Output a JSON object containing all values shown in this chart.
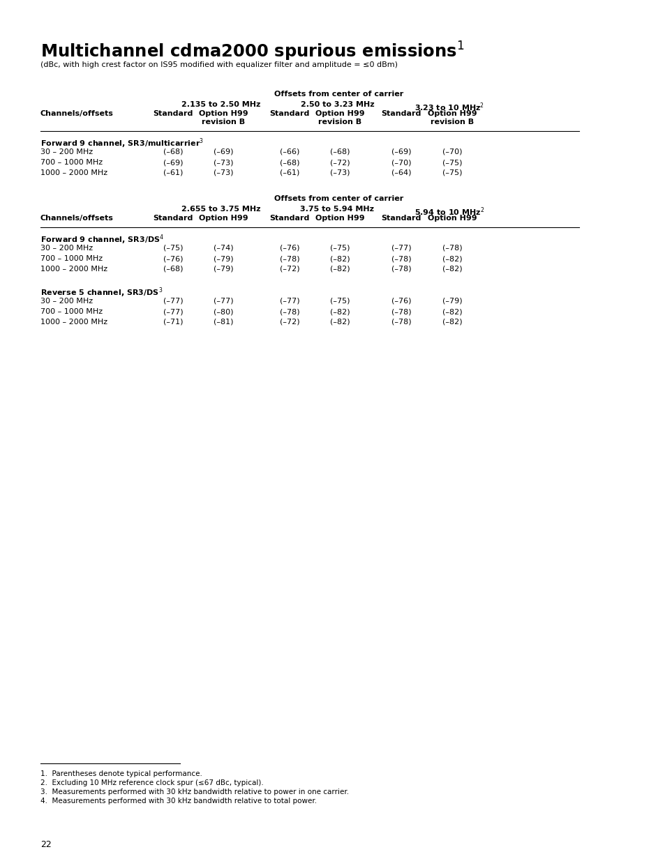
{
  "title": "Multichannel cdma2000 spurious emissions",
  "title_superscript": "1",
  "subtitle": "(dBc, with high crest factor on IS95 modified with equalizer filter and amplitude = ≤0 dBm)",
  "bg_color": "#ffffff",
  "table1_header_center": "Offsets from center of carrier",
  "table1_col_group1": "2.135 to 2.50 MHz",
  "table1_col_group2": "2.50 to 3.23 MHz",
  "table1_col_group3": "3.23 to 10 MHz",
  "table1_col_group3_super": "2",
  "table1_col_headers": [
    "Channels/offsets",
    "Standard",
    "Option H99\nrevision B",
    "Standard",
    "Option H99\nrevision B",
    "Standard",
    "Option H99\nrevision B"
  ],
  "table1_section1_label": "Forward 9 channel, SR3/multicarrier",
  "table1_section1_super": "3",
  "table1_rows1": [
    [
      "30 – 200 MHz",
      "(–68)",
      "(–69)",
      "(–66)",
      "(–68)",
      "(–69)",
      "(–70)"
    ],
    [
      "700 – 1000 MHz",
      "(–69)",
      "(–73)",
      "(–68)",
      "(–72)",
      "(–70)",
      "(–75)"
    ],
    [
      "1000 – 2000 MHz",
      "(–61)",
      "(–73)",
      "(–61)",
      "(–73)",
      "(–64)",
      "(–75)"
    ]
  ],
  "table2_header_center": "Offsets from center of carrier",
  "table2_col_group1": "2.655 to 3.75 MHz",
  "table2_col_group2": "3.75 to 5.94 MHz",
  "table2_col_group3": "5.94 to 10 MHz",
  "table2_col_group3_super": "2",
  "table2_col_headers": [
    "Channels/offsets",
    "Standard",
    "Option H99",
    "Standard",
    "Option H99",
    "Standard",
    "Option H99"
  ],
  "table2_section1_label": "Forward 9 channel, SR3/DS",
  "table2_section1_super": "4",
  "table2_rows1": [
    [
      "30 – 200 MHz",
      "(–75)",
      "(–74)",
      "(–76)",
      "(–75)",
      "(–77)",
      "(–78)"
    ],
    [
      "700 – 1000 MHz",
      "(–76)",
      "(–79)",
      "(–78)",
      "(–82)",
      "(–78)",
      "(–82)"
    ],
    [
      "1000 – 2000 MHz",
      "(–68)",
      "(–79)",
      "(–72)",
      "(–82)",
      "(–78)",
      "(–82)"
    ]
  ],
  "table2_section2_label": "Reverse 5 channel, SR3/DS",
  "table2_section2_super": "3",
  "table2_rows2": [
    [
      "30 – 200 MHz",
      "(–77)",
      "(–77)",
      "(–77)",
      "(–75)",
      "(–76)",
      "(–79)"
    ],
    [
      "700 – 1000 MHz",
      "(–77)",
      "(–80)",
      "(–78)",
      "(–82)",
      "(–78)",
      "(–82)"
    ],
    [
      "1000 – 2000 MHz",
      "(–71)",
      "(–81)",
      "(–72)",
      "(–82)",
      "(–78)",
      "(–82)"
    ]
  ],
  "footnotes": [
    "1.  Parentheses denote typical performance.",
    "2.  Excluding 10 MHz reference clock spur (≤67 dBc, typical).",
    "3.  Measurements performed with 30 kHz bandwidth relative to power in one carrier.",
    "4.  Measurements performed with 30 kHz bandwidth relative to total power."
  ],
  "page_number": "22"
}
